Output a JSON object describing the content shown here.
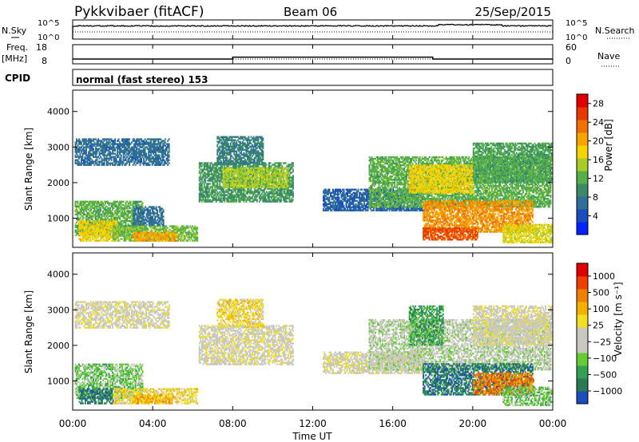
{
  "header": {
    "station": "Pykkvibaer (fitACF)",
    "beam": "Beam 06",
    "date": "25/Sep/2015"
  },
  "colors": {
    "power_scale": [
      "#0022ff",
      "#1a4dbd",
      "#2f6f9a",
      "#3a8a6a",
      "#55b04a",
      "#a8cc2a",
      "#f5d400",
      "#f5a400",
      "#f07000",
      "#e83a00",
      "#e00000"
    ],
    "velocity_scale": [
      "#e00000",
      "#f04000",
      "#f08000",
      "#f5b000",
      "#f0e020",
      "#c8c8c0",
      "#c8c8c0",
      "#66cc33",
      "#33a055",
      "#2a7a55",
      "#1a4dbd"
    ]
  },
  "chart_data": [
    {
      "type": "line",
      "name": "noise-panel",
      "series": [
        {
          "name": "N.Sky",
          "description": "sky noise"
        },
        {
          "name": "N.Search",
          "style": "dotted"
        }
      ],
      "left_ticks": [
        "10^5",
        "10^0"
      ],
      "right_ticks": [
        "10^5",
        "10^0"
      ],
      "left_label": "N.Sky",
      "right_label": "N.Search"
    },
    {
      "type": "line",
      "name": "frequency-panel",
      "left_label": "Freq.\n[MHz]",
      "left_ticks": [
        18,
        8
      ],
      "right_label": "Nave",
      "right_ticks": [
        60,
        0
      ],
      "freq_segments": [
        {
          "t0": 0,
          "t1": 8,
          "value": 10.5
        },
        {
          "t0": 8,
          "t1": 18,
          "value": 11.5
        },
        {
          "t0": 18,
          "t1": 24,
          "value": 10.5
        }
      ],
      "nave_level": 15
    },
    {
      "type": "table",
      "name": "cpid-row",
      "label": "CPID",
      "value": "normal (fast stereo) 153"
    },
    {
      "type": "heatmap",
      "name": "power-panel",
      "ylabel": "Slant Range [km]",
      "yticks": [
        1000,
        2000,
        3000,
        4000
      ],
      "ylim": [
        180,
        4600
      ],
      "xlim": [
        0,
        24
      ],
      "colorbar_label": "Power [dB]",
      "colorbar_ticks": [
        4,
        8,
        12,
        16,
        20,
        24,
        28
      ],
      "colorbar_range": [
        0,
        30
      ],
      "regions": [
        {
          "t0": 0.1,
          "t1": 4.8,
          "r0": 2480,
          "r1": 3230,
          "level": 6
        },
        {
          "t0": 0.1,
          "t1": 3.5,
          "r0": 500,
          "r1": 1450,
          "level": 12
        },
        {
          "t0": 0.3,
          "t1": 2.2,
          "r0": 350,
          "r1": 900,
          "level": 18
        },
        {
          "t0": 2.0,
          "t1": 6.2,
          "r0": 350,
          "r1": 800,
          "level": 13
        },
        {
          "t0": 3.0,
          "t1": 5.2,
          "r0": 350,
          "r1": 600,
          "level": 21
        },
        {
          "t0": 3.0,
          "t1": 4.5,
          "r0": 800,
          "r1": 1300,
          "level": 6
        },
        {
          "t0": 6.3,
          "t1": 11.0,
          "r0": 1450,
          "r1": 2550,
          "level": 10
        },
        {
          "t0": 7.5,
          "t1": 10.8,
          "r0": 1850,
          "r1": 2400,
          "level": 15
        },
        {
          "t0": 7.2,
          "t1": 9.5,
          "r0": 2500,
          "r1": 3300,
          "level": 8
        },
        {
          "t0": 12.5,
          "t1": 17.5,
          "r0": 1200,
          "r1": 1800,
          "level": 5
        },
        {
          "t0": 14.8,
          "t1": 23.9,
          "r0": 1300,
          "r1": 2700,
          "level": 12
        },
        {
          "t0": 16.8,
          "t1": 20.0,
          "r0": 1700,
          "r1": 2500,
          "level": 18
        },
        {
          "t0": 17.5,
          "t1": 23.0,
          "r0": 600,
          "r1": 1500,
          "level": 22
        },
        {
          "t0": 17.5,
          "t1": 20.2,
          "r0": 380,
          "r1": 700,
          "level": 26
        },
        {
          "t0": 20.0,
          "t1": 23.9,
          "r0": 2000,
          "r1": 3100,
          "level": 11
        },
        {
          "t0": 21.5,
          "t1": 23.9,
          "r0": 300,
          "r1": 800,
          "level": 17
        }
      ]
    },
    {
      "type": "heatmap",
      "name": "velocity-panel",
      "ylabel": "Slant Range [km]",
      "yticks": [
        1000,
        2000,
        3000,
        4000
      ],
      "ylim": [
        180,
        4600
      ],
      "xlim": [
        0,
        24
      ],
      "xticks": [
        "00:00",
        "04:00",
        "08:00",
        "12:00",
        "16:00",
        "20:00",
        "00:00"
      ],
      "xlabel": "Time UT",
      "colorbar_label": "Velocity [m s⁻¹]",
      "colorbar_ticks": [
        "1000",
        "500",
        "100",
        "25",
        "−25",
        "−100",
        "−500",
        "−1000"
      ],
      "regions": [
        {
          "t0": 0.1,
          "t1": 4.8,
          "r0": 2480,
          "r1": 3230,
          "level": 5
        },
        {
          "t0": 0.1,
          "t1": 3.5,
          "r0": 500,
          "r1": 1450,
          "level": 7
        },
        {
          "t0": 0.3,
          "t1": 2.0,
          "r0": 350,
          "r1": 800,
          "level": 9
        },
        {
          "t0": 2.0,
          "t1": 6.2,
          "r0": 350,
          "r1": 800,
          "level": 4
        },
        {
          "t0": 3.0,
          "t1": 5.0,
          "r0": 350,
          "r1": 600,
          "level": 3
        },
        {
          "t0": 6.3,
          "t1": 11.0,
          "r0": 1450,
          "r1": 2550,
          "level": 5
        },
        {
          "t0": 7.2,
          "t1": 9.5,
          "r0": 2500,
          "r1": 3300,
          "level": 4
        },
        {
          "t0": 12.5,
          "t1": 17.5,
          "r0": 1200,
          "r1": 1800,
          "level": 5
        },
        {
          "t0": 14.8,
          "t1": 23.9,
          "r0": 1300,
          "r1": 2700,
          "level": 6
        },
        {
          "t0": 16.8,
          "t1": 18.5,
          "r0": 2000,
          "r1": 3100,
          "level": 8
        },
        {
          "t0": 17.5,
          "t1": 23.0,
          "r0": 600,
          "r1": 1500,
          "level": 9
        },
        {
          "t0": 20.0,
          "t1": 23.0,
          "r0": 600,
          "r1": 1200,
          "level": 2
        },
        {
          "t0": 20.0,
          "t1": 23.9,
          "r0": 2000,
          "r1": 3100,
          "level": 5
        },
        {
          "t0": 21.5,
          "t1": 23.9,
          "r0": 300,
          "r1": 800,
          "level": 7
        }
      ]
    }
  ]
}
